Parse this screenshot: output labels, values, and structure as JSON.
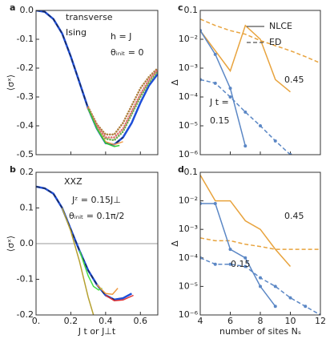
{
  "chart_data": [
    {
      "type": "line",
      "label": "a",
      "ylabel": "⟨σˣ⟩",
      "annotations": [
        {
          "text": "transverse"
        },
        {
          "text": "Ising"
        },
        {
          "text": "h = J"
        },
        {
          "text": "θᵢₙᵢₜ = 0"
        }
      ],
      "xlim": [
        0,
        0.7
      ],
      "xticks": [
        0,
        0.2,
        0.4,
        0.6
      ],
      "xtick_labels": false,
      "ylim": [
        -0.5,
        0
      ],
      "yticks": [
        {
          "value": 0,
          "label": "0.0"
        },
        -0.1,
        -0.2,
        -0.3,
        -0.4,
        -0.5
      ],
      "series": [
        {
          "color": "#1f4fd8",
          "style": "solid",
          "x": [
            0,
            0.05,
            0.1,
            0.15,
            0.2,
            0.25,
            0.3,
            0.35,
            0.4,
            0.45,
            0.5,
            0.55,
            0.6,
            0.65,
            0.7
          ],
          "values": [
            0,
            -0.005,
            -0.03,
            -0.08,
            -0.16,
            -0.25,
            -0.34,
            -0.41,
            -0.46,
            -0.465,
            -0.44,
            -0.39,
            -0.32,
            -0.26,
            -0.22
          ]
        },
        {
          "color": "#1a2a5a",
          "style": "dashed",
          "x": [
            0,
            0.05,
            0.1,
            0.15,
            0.2,
            0.25,
            0.3,
            0.35,
            0.4,
            0.45,
            0.5
          ],
          "values": [
            0,
            -0.005,
            -0.03,
            -0.08,
            -0.16,
            -0.25,
            -0.34,
            -0.41,
            -0.46,
            -0.465,
            -0.44
          ]
        },
        {
          "color": "#6fae4f",
          "style": "dotted",
          "x": [
            0.3,
            0.35,
            0.4,
            0.45,
            0.5,
            0.55,
            0.6,
            0.65,
            0.7
          ],
          "values": [
            -0.34,
            -0.405,
            -0.445,
            -0.45,
            -0.42,
            -0.36,
            -0.3,
            -0.25,
            -0.21
          ]
        },
        {
          "color": "#b08040",
          "style": "dotted",
          "x": [
            0.3,
            0.35,
            0.4,
            0.45,
            0.5,
            0.55,
            0.6,
            0.65,
            0.7
          ],
          "values": [
            -0.335,
            -0.395,
            -0.43,
            -0.43,
            -0.39,
            -0.33,
            -0.27,
            -0.23,
            -0.2
          ]
        },
        {
          "color": "#e07070",
          "style": "dotted",
          "x": [
            0.3,
            0.35,
            0.4,
            0.45,
            0.5,
            0.55,
            0.6,
            0.65,
            0.7
          ],
          "values": [
            -0.34,
            -0.4,
            -0.44,
            -0.44,
            -0.41,
            -0.35,
            -0.29,
            -0.24,
            -0.205
          ]
        },
        {
          "color": "#f0a050",
          "style": "solid",
          "x": [
            0.35,
            0.4,
            0.45,
            0.5
          ],
          "values": [
            -0.41,
            -0.455,
            -0.465,
            -0.455
          ]
        },
        {
          "color": "#33cc33",
          "style": "solid",
          "x": [
            0.3,
            0.35,
            0.4,
            0.45,
            0.48
          ],
          "values": [
            -0.34,
            -0.41,
            -0.46,
            -0.472,
            -0.468
          ]
        }
      ]
    },
    {
      "type": "line",
      "label": "b",
      "ylabel": "⟨σˣ⟩",
      "xlabel": "J t  or J⊥t",
      "annotations": [
        {
          "text": "XXZ"
        },
        {
          "text": "Jᶻ = 0.15J⊥"
        },
        {
          "text": "θᵢₙᵢₜ = 0.1π/2"
        }
      ],
      "xlim": [
        0,
        0.7
      ],
      "xticks": [
        {
          "value": 0,
          "label": "0."
        },
        0.2,
        0.4,
        0.6
      ],
      "xtick_labels": true,
      "ylim": [
        -0.2,
        0.2
      ],
      "yticks": [
        0.2,
        0.1,
        {
          "value": 0,
          "label": "0.0"
        },
        -0.1,
        -0.2
      ],
      "hline": 0,
      "series": [
        {
          "color": "#1f4fd8",
          "style": "solid",
          "x": [
            0,
            0.05,
            0.1,
            0.15,
            0.2,
            0.25,
            0.3,
            0.35,
            0.4,
            0.45,
            0.5,
            0.55
          ],
          "values": [
            0.16,
            0.155,
            0.14,
            0.1,
            0.04,
            -0.02,
            -0.075,
            -0.115,
            -0.145,
            -0.157,
            -0.153,
            -0.14
          ]
        },
        {
          "color": "#1a2a5a",
          "style": "dashed",
          "x": [
            0,
            0.05,
            0.1,
            0.15,
            0.2,
            0.25,
            0.3,
            0.35,
            0.4,
            0.45
          ],
          "values": [
            0.16,
            0.155,
            0.14,
            0.1,
            0.04,
            -0.02,
            -0.075,
            -0.115,
            -0.145,
            -0.157
          ]
        },
        {
          "color": "#b5a030",
          "style": "solid",
          "x": [
            0.15,
            0.2,
            0.25,
            0.3,
            0.33
          ],
          "values": [
            0.1,
            0.035,
            -0.05,
            -0.15,
            -0.2
          ]
        },
        {
          "color": "#44dd44",
          "style": "solid",
          "x": [
            0.25,
            0.3,
            0.33,
            0.36,
            0.38
          ],
          "values": [
            -0.02,
            -0.09,
            -0.12,
            -0.13,
            -0.125
          ]
        },
        {
          "color": "#f09a40",
          "style": "solid",
          "x": [
            0.35,
            0.4,
            0.44,
            0.47
          ],
          "values": [
            -0.115,
            -0.14,
            -0.142,
            -0.125
          ]
        },
        {
          "color": "#e03030",
          "style": "solid",
          "x": [
            0.4,
            0.45,
            0.5,
            0.56
          ],
          "values": [
            -0.145,
            -0.16,
            -0.158,
            -0.145
          ]
        }
      ]
    },
    {
      "type": "line",
      "label": "c",
      "ylabel": "Δ",
      "log_y": true,
      "annotations": [
        {
          "text": "0.45",
          "color": "#e8a33d"
        },
        {
          "text": "J t =",
          "color": "#5b87c5"
        },
        {
          "text": "0.15",
          "color": "#5b87c5"
        }
      ],
      "legend": [
        {
          "name": "NLCE",
          "style": "solid"
        },
        {
          "name": "ED",
          "style": "dashed"
        }
      ],
      "xlim": [
        4,
        12
      ],
      "xticks": [
        4,
        6,
        8,
        10,
        12
      ],
      "xtick_labels": false,
      "ylim": [
        1e-06,
        0.1
      ],
      "yticks": [
        0.1,
        {
          "value": 0.01,
          "label": "10⁻²"
        },
        {
          "value": 0.001,
          "label": "10⁻³"
        },
        {
          "value": 0.0001,
          "label": "10⁻⁴"
        },
        {
          "value": 1e-05,
          "label": "10⁻⁵"
        },
        {
          "value": 1e-06,
          "label": "10⁻⁶"
        }
      ],
      "series": [
        {
          "color": "#e8a33d",
          "style": "solid",
          "x": [
            4,
            5,
            6,
            7,
            8,
            9,
            10
          ],
          "values": [
            0.02,
            0.004,
            0.0008,
            0.03,
            0.01,
            0.0004,
            0.00015
          ]
        },
        {
          "color": "#e8a33d",
          "style": "dashed",
          "x": [
            4,
            5,
            6,
            7,
            8,
            9,
            10,
            11,
            12
          ],
          "values": [
            0.05,
            0.03,
            0.02,
            0.015,
            0.009,
            0.006,
            0.004,
            0.0025,
            0.0015
          ]
        },
        {
          "color": "#5b87c5",
          "style": "solid",
          "markers": true,
          "x": [
            4,
            5,
            6,
            7
          ],
          "values": [
            0.02,
            0.003,
            0.0002,
            2e-06
          ]
        },
        {
          "color": "#5b87c5",
          "style": "dashed",
          "markers": true,
          "x": [
            4,
            5,
            6,
            7,
            8,
            9,
            10
          ],
          "values": [
            0.0004,
            0.0003,
            0.0001,
            3e-05,
            1e-05,
            3e-06,
            1e-06
          ]
        }
      ]
    },
    {
      "type": "line",
      "label": "d",
      "ylabel": "Δ",
      "xlabel": "number of sites Nₛ",
      "log_y": true,
      "annotations": [
        {
          "text": "0.45",
          "color": "#e8a33d"
        },
        {
          "text": "0.15",
          "color": "#5b87c5"
        }
      ],
      "xlim": [
        4,
        12
      ],
      "xticks": [
        4,
        6,
        8,
        10,
        12
      ],
      "xtick_labels": true,
      "ylim": [
        1e-06,
        0.1
      ],
      "yticks": [
        0.1,
        {
          "value": 0.01,
          "label": "10⁻²"
        },
        {
          "value": 0.001,
          "label": "10⁻³"
        },
        {
          "value": 0.0001,
          "label": "10⁻⁴"
        },
        {
          "value": 1e-05,
          "label": "10⁻⁵"
        },
        {
          "value": 1e-06,
          "label": "10⁻⁶"
        }
      ],
      "series": [
        {
          "color": "#e8a33d",
          "style": "solid",
          "x": [
            4,
            5,
            6,
            7,
            8,
            9,
            10
          ],
          "values": [
            0.08,
            0.01,
            0.01,
            0.002,
            0.001,
            0.0002,
            5e-05
          ]
        },
        {
          "color": "#e8a33d",
          "style": "dashed",
          "x": [
            4,
            5,
            6,
            7,
            8,
            9,
            10,
            11,
            12
          ],
          "values": [
            0.0005,
            0.0004,
            0.0004,
            0.0003,
            0.00025,
            0.0002,
            0.0002,
            0.0002,
            0.0002
          ]
        },
        {
          "color": "#5b87c5",
          "style": "solid",
          "markers": true,
          "x": [
            4,
            5,
            6,
            7,
            8,
            9
          ],
          "values": [
            0.008,
            0.008,
            0.0002,
            0.0001,
            1e-05,
            2e-06
          ]
        },
        {
          "color": "#5b87c5",
          "style": "dashed",
          "markers": true,
          "x": [
            4,
            5,
            6,
            7,
            8,
            9,
            10,
            11,
            12
          ],
          "values": [
            0.0001,
            6e-05,
            6e-05,
            5e-05,
            2e-05,
            1e-05,
            4e-06,
            2e-06,
            1e-06
          ]
        }
      ]
    }
  ]
}
